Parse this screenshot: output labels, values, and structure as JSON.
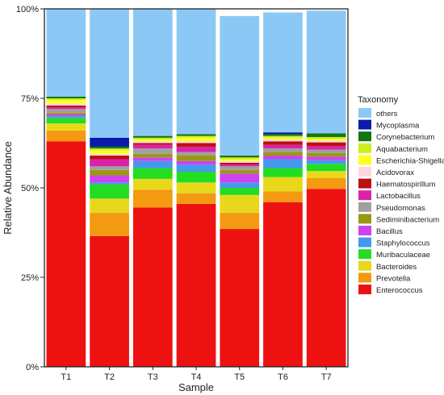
{
  "chart_data": {
    "type": "bar",
    "stacked": true,
    "xlabel": "Sample",
    "ylabel": "Relative Abundance",
    "ylim": [
      0,
      1
    ],
    "yticks": [
      {
        "value": 0,
        "label": "0%"
      },
      {
        "value": 0.25,
        "label": "25%"
      },
      {
        "value": 0.5,
        "label": "50%"
      },
      {
        "value": 0.75,
        "label": "75%"
      },
      {
        "value": 1,
        "label": "100%"
      }
    ],
    "legend_title": "Taxonomy",
    "legend_position": "right",
    "categories": [
      "T1",
      "T2",
      "T3",
      "T4",
      "T5",
      "T6",
      "T7"
    ],
    "series": [
      {
        "name": "Enterococcus",
        "color": "#ee1111",
        "values": [
          0.63,
          0.365,
          0.445,
          0.455,
          0.385,
          0.46,
          0.497
        ]
      },
      {
        "name": "Prevotella",
        "color": "#f39a12",
        "values": [
          0.03,
          0.065,
          0.05,
          0.03,
          0.045,
          0.03,
          0.03
        ]
      },
      {
        "name": "Bacteroides",
        "color": "#e8d81c",
        "values": [
          0.02,
          0.04,
          0.03,
          0.03,
          0.05,
          0.04,
          0.02
        ]
      },
      {
        "name": "Muribaculaceae",
        "color": "#22dd22",
        "values": [
          0.015,
          0.04,
          0.03,
          0.03,
          0.02,
          0.025,
          0.02
        ]
      },
      {
        "name": "Staphylococcus",
        "color": "#4499ee",
        "values": [
          0.005,
          0.005,
          0.02,
          0.02,
          0.015,
          0.025,
          0.01
        ]
      },
      {
        "name": "Bacillus",
        "color": "#cc44ee",
        "values": [
          0.005,
          0.02,
          0.01,
          0.01,
          0.025,
          0.01,
          0.01
        ]
      },
      {
        "name": "Sediminibacterium",
        "color": "#999911",
        "values": [
          0.005,
          0.015,
          0.01,
          0.015,
          0.01,
          0.01,
          0.01
        ]
      },
      {
        "name": "Pseudomonas",
        "color": "#a0a0a0",
        "values": [
          0.01,
          0.01,
          0.015,
          0.01,
          0.01,
          0.01,
          0.01
        ]
      },
      {
        "name": "Lactobacillus",
        "color": "#dd22aa",
        "values": [
          0.005,
          0.02,
          0.01,
          0.015,
          0.005,
          0.01,
          0.01
        ]
      },
      {
        "name": "Haematospirillum",
        "color": "#bb1111",
        "values": [
          0.005,
          0.01,
          0.005,
          0.01,
          0.005,
          0.01,
          0.01
        ]
      },
      {
        "name": "Acidovorax",
        "color": "#ffd6de",
        "values": [
          0.005,
          0.005,
          0.005,
          0.005,
          0.005,
          0.005,
          0.005
        ]
      },
      {
        "name": "Escherichia-Shigella",
        "color": "#ffff22",
        "values": [
          0.01,
          0.01,
          0.005,
          0.01,
          0.005,
          0.005,
          0.005
        ]
      },
      {
        "name": "Aquabacterium",
        "color": "#ccee22",
        "values": [
          0.005,
          0.005,
          0.005,
          0.005,
          0.005,
          0.005,
          0.005
        ]
      },
      {
        "name": "Corynebacterium",
        "color": "#117711",
        "values": [
          0.005,
          0.005,
          0.005,
          0.005,
          0.005,
          0.005,
          0.01
        ]
      },
      {
        "name": "Mycoplasma",
        "color": "#0a1aaa",
        "values": [
          0.0,
          0.025,
          0.0,
          0.0,
          0.0,
          0.005,
          0.0
        ]
      },
      {
        "name": "others",
        "color": "#8cc8f5",
        "values": [
          0.245,
          0.37,
          0.355,
          0.35,
          0.39,
          0.335,
          0.343
        ]
      }
    ]
  }
}
